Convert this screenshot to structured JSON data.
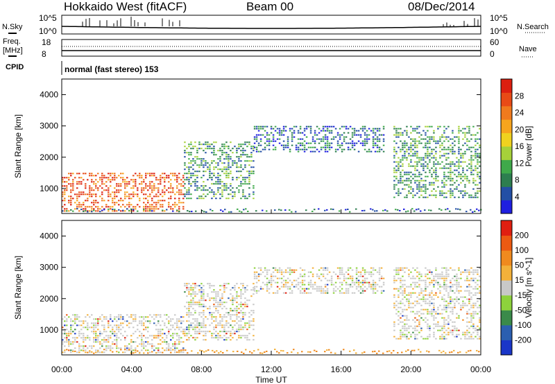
{
  "header": {
    "title": "Hokkaido West (fitACF)",
    "beam": "Beam 00",
    "date": "08/Dec/2014"
  },
  "noise_panel": {
    "left_label": "N.Sky",
    "right_label": "N.Search",
    "left_ticks": [
      "10^5",
      "10^0"
    ],
    "right_ticks": [
      "10^5",
      "10^0"
    ]
  },
  "freq_panel": {
    "left_label": "Freq.",
    "left_unit": "[MHz]",
    "right_label": "Nave",
    "left_ticks": [
      "18",
      "8"
    ],
    "right_ticks": [
      "60",
      "0"
    ],
    "cpid_label": "CPID",
    "cpid_text": "normal (fast stereo) 153"
  },
  "chart_data": [
    {
      "type": "heatmap",
      "panel": "power",
      "ylabel": "Slant Range [km]",
      "ylim": [
        200,
        4500
      ],
      "yticks": [
        1000,
        2000,
        3000,
        4000
      ],
      "xlim_hours": [
        0,
        24
      ],
      "colorbar": {
        "label": "Power [dB]",
        "ticks": [
          "28",
          "24",
          "20",
          "16",
          "12",
          "8",
          "4"
        ],
        "colors": [
          "#1f1fe0",
          "#234fa5",
          "#2d7e4f",
          "#3fa94a",
          "#a6d13a",
          "#f0d21f",
          "#f7a51d",
          "#f07a1d",
          "#e84a16",
          "#dc1f10"
        ]
      },
      "echo_bands": [
        {
          "t_start": 0.0,
          "t_end": 7.0,
          "range_low": 300,
          "range_high": 1500,
          "level": "strong"
        },
        {
          "t_start": 7.0,
          "t_end": 11.0,
          "range_low": 700,
          "range_high": 2500,
          "level": "moderate"
        },
        {
          "t_start": 11.0,
          "t_end": 18.5,
          "range_low": 2200,
          "range_high": 3000,
          "level": "weak"
        },
        {
          "t_start": 19.0,
          "t_end": 24.0,
          "range_low": 700,
          "range_high": 3000,
          "level": "moderate"
        }
      ]
    },
    {
      "type": "heatmap",
      "panel": "velocity",
      "ylabel": "Slant Range [km]",
      "ylim": [
        200,
        4500
      ],
      "yticks": [
        1000,
        2000,
        3000,
        4000
      ],
      "xlim_hours": [
        0,
        24
      ],
      "xlabel": "Time UT",
      "xticks": [
        "00:00",
        "04:00",
        "08:00",
        "12:00",
        "16:00",
        "20:00",
        "00:00"
      ],
      "colorbar": {
        "label": "Velocity [m s^-1]",
        "ticks": [
          "200",
          "100",
          "50",
          "15",
          "-15",
          "-50",
          "-100",
          "-200"
        ],
        "colors": [
          "#1a36c8",
          "#2b5fb0",
          "#3a8a4a",
          "#8dd23c",
          "#c8c8c8",
          "#f3b13a",
          "#f08a1e",
          "#ec5a12",
          "#e01f10"
        ]
      }
    }
  ]
}
